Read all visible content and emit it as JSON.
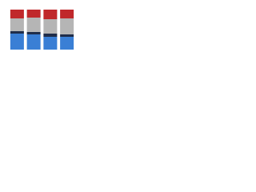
{
  "chart_data": {
    "type": "stacked-bar",
    "categories": [
      null,
      null,
      null,
      null
    ],
    "ylim": [
      0,
      100
    ],
    "series": [
      {
        "color": "#3a7fd5",
        "values": [
          40,
          38,
          32,
          32
        ]
      },
      {
        "color": "#1f2d4a",
        "values": [
          6,
          6,
          8,
          6
        ]
      },
      {
        "color": "#b5b5b5",
        "values": [
          32,
          36,
          36,
          40
        ]
      },
      {
        "color": "#c0282b",
        "values": [
          22,
          20,
          24,
          22
        ]
      }
    ]
  }
}
